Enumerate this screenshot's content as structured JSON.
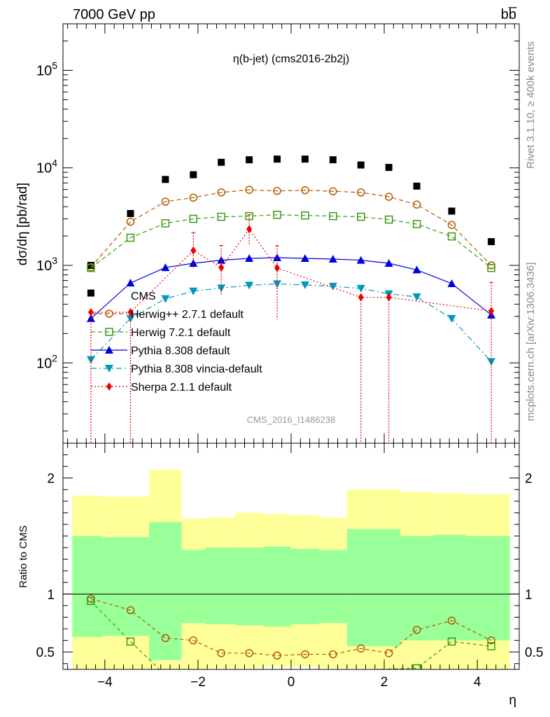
{
  "header": {
    "left": "7000 GeV pp",
    "right": "bb̅"
  },
  "side_labels": {
    "rivet": "Rivet 3.1.10, ≥ 400k events",
    "mcplots": "mcplots.cern.ch [arXiv:1306.3436]"
  },
  "chart_data": [
    {
      "type": "scatter",
      "panel": "main",
      "title": "η(b-jet) (cms2016-2b2j)",
      "watermark": "CMS_2016_I1486238",
      "ylabel": "dσ/dη [pb/rad]",
      "xlabel": "",
      "yscale": "log",
      "xlim": [
        -4.9,
        4.9
      ],
      "ylim": [
        15,
        300000
      ],
      "yticks": [
        {
          "value": 100,
          "label": "10",
          "exp": "2"
        },
        {
          "value": 1000,
          "label": "10",
          "exp": "3"
        },
        {
          "value": 10000,
          "label": "10",
          "exp": "4"
        },
        {
          "value": 100000,
          "label": "10",
          "exp": "5"
        }
      ],
      "legend_position": "lower-left",
      "series": [
        {
          "name": "CMS",
          "color": "#000000",
          "marker": "square-filled",
          "line": "none",
          "x": [
            -4.3,
            -4.3,
            -3.45,
            -2.7,
            -2.1,
            -1.5,
            -0.9,
            -0.3,
            0.3,
            0.9,
            1.5,
            2.1,
            2.7,
            3.45,
            4.3
          ],
          "y": [
            1000,
            520,
            3400,
            7600,
            8500,
            11400,
            12100,
            12300,
            12300,
            12100,
            10700,
            10100,
            6500,
            3600,
            1750
          ]
        },
        {
          "name": "Herwig++ 2.7.1 default",
          "color": "#b35900",
          "marker": "circle-open",
          "line": "dashed",
          "x": [
            -4.3,
            -3.45,
            -2.7,
            -2.1,
            -1.5,
            -0.9,
            -0.3,
            0.3,
            0.9,
            1.5,
            2.1,
            2.7,
            3.45,
            4.3
          ],
          "y": [
            960,
            2800,
            4500,
            4950,
            5600,
            5950,
            5800,
            5900,
            5750,
            5600,
            5050,
            4200,
            2600,
            1000
          ]
        },
        {
          "name": "Herwig 7.2.1 default",
          "color": "#3a9a10",
          "marker": "square-open",
          "line": "dashed",
          "x": [
            -4.3,
            -3.45,
            -2.7,
            -2.1,
            -1.5,
            -0.9,
            -0.3,
            0.3,
            0.9,
            1.5,
            2.1,
            2.7,
            3.45,
            4.3
          ],
          "y": [
            940,
            1920,
            2700,
            3000,
            3150,
            3200,
            3300,
            3250,
            3200,
            3150,
            2950,
            2650,
            1980,
            940
          ]
        },
        {
          "name": "Pythia 8.308 default",
          "color": "#0000dd",
          "marker": "triangle-up-filled",
          "line": "solid",
          "x": [
            -4.3,
            -3.45,
            -2.7,
            -2.1,
            -1.5,
            -0.9,
            -0.3,
            0.3,
            0.9,
            1.5,
            2.1,
            2.7,
            3.45,
            4.3
          ],
          "y": [
            285,
            660,
            950,
            1050,
            1130,
            1180,
            1200,
            1180,
            1160,
            1130,
            1050,
            900,
            650,
            310
          ]
        },
        {
          "name": "Pythia 8.308 vincia-default",
          "color": "#0099bb",
          "marker": "triangle-down-filled",
          "line": "dashdot",
          "x": [
            -4.3,
            -3.45,
            -2.7,
            -2.1,
            -1.5,
            -0.9,
            -0.3,
            0.3,
            0.9,
            1.5,
            2.1,
            2.7,
            3.45,
            4.3
          ],
          "y": [
            108,
            285,
            455,
            545,
            585,
            625,
            645,
            630,
            610,
            580,
            510,
            475,
            285,
            103
          ]
        },
        {
          "name": "Sherpa 2.1.1 default",
          "color": "#ee0000",
          "marker": "diamond-filled",
          "line": "dotted",
          "x": [
            -4.3,
            -3.45,
            -2.1,
            -1.5,
            -0.9,
            -0.3,
            1.5,
            2.1,
            4.3
          ],
          "y": [
            330,
            330,
            1420,
            950,
            2350,
            940,
            470,
            470,
            340
          ],
          "yerr_low": [
            315,
            315,
            500,
            450,
            700,
            660,
            455,
            455,
            325
          ],
          "yerr_high": [
            0,
            0,
            750,
            650,
            950,
            650,
            0,
            0,
            330
          ]
        }
      ]
    },
    {
      "type": "line",
      "panel": "ratio",
      "ylabel": "Ratio to CMS",
      "xlabel": "η",
      "xlim": [
        -4.9,
        4.9
      ],
      "ylim": [
        0.35,
        2.3
      ],
      "xticks": [
        -4,
        -2,
        0,
        2,
        4
      ],
      "xtick_labels": [
        "−4",
        "−2",
        "0",
        "2",
        "4"
      ],
      "yticks": [
        0.5,
        1,
        2
      ],
      "ytick_labels": [
        "0.5",
        "1",
        "2"
      ],
      "reference_line": 1,
      "bands": {
        "edges": [
          -4.7,
          -4.05,
          -3.05,
          -2.35,
          -1.85,
          -1.2,
          -0.6,
          0,
          0.6,
          1.2,
          1.85,
          2.35,
          3.05,
          3.75,
          4.7
        ],
        "yellow_low": [
          0.35,
          0.35,
          0.35,
          0.35,
          0.36,
          0.36,
          0.37,
          0.37,
          0.36,
          0.36,
          0.35,
          0.35,
          0.35,
          0.35
        ],
        "yellow_high": [
          1.85,
          1.84,
          2.07,
          1.65,
          1.66,
          1.7,
          1.69,
          1.68,
          1.66,
          1.9,
          1.9,
          1.88,
          1.87,
          1.86
        ],
        "green_low": [
          0.63,
          0.64,
          0.43,
          0.75,
          0.74,
          0.73,
          0.72,
          0.74,
          0.75,
          0.55,
          0.55,
          0.6,
          0.6,
          0.6
        ],
        "green_high": [
          1.5,
          1.49,
          1.62,
          1.38,
          1.4,
          1.4,
          1.41,
          1.39,
          1.38,
          1.56,
          1.56,
          1.5,
          1.51,
          1.5
        ]
      },
      "series": [
        {
          "name": "Herwig++ 2.7.1 default",
          "color": "#b35900",
          "marker": "circle-open",
          "x": [
            -4.3,
            -3.45,
            -2.7,
            -2.1,
            -1.5,
            -0.9,
            -0.3,
            0.3,
            0.9,
            1.5,
            2.1,
            2.7,
            3.45,
            4.3
          ],
          "y": [
            0.96,
            0.86,
            0.62,
            0.6,
            0.49,
            0.49,
            0.47,
            0.48,
            0.48,
            0.53,
            0.49,
            0.69,
            0.77,
            0.6
          ]
        },
        {
          "name": "Herwig 7.2.1 default",
          "color": "#3a9a10",
          "marker": "square-open",
          "x": [
            -4.3,
            -3.45,
            -2.7,
            2.7,
            3.45,
            4.3
          ],
          "y": [
            0.94,
            0.59,
            0.3,
            0.36,
            0.59,
            0.55
          ]
        }
      ]
    }
  ]
}
